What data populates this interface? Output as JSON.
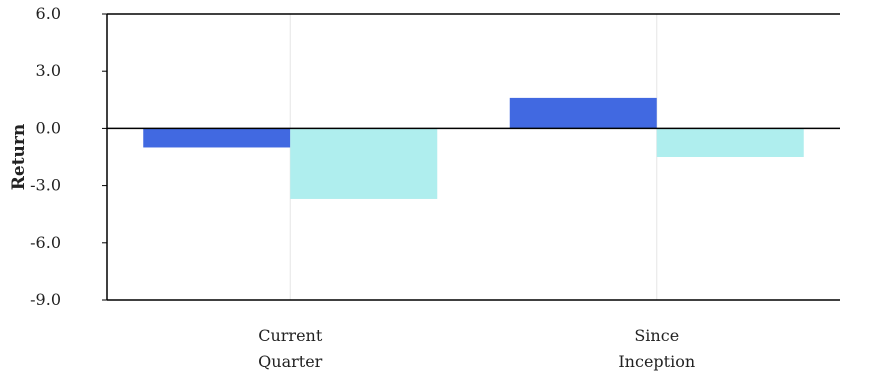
{
  "chart_data": {
    "type": "bar",
    "categories": [
      [
        "Current",
        "Quarter"
      ],
      [
        "Since",
        "Inception"
      ]
    ],
    "series": [
      {
        "color": "#4169E1",
        "values": [
          -1.0,
          1.6
        ]
      },
      {
        "color": "#AFEEEE",
        "values": [
          -3.7,
          -1.5
        ]
      }
    ],
    "xlabel": "",
    "ylabel": "Return",
    "ylim": [
      -9.0,
      6.0
    ],
    "yticks": [
      6.0,
      3.0,
      0.0,
      -3.0,
      -6.0,
      -9.0
    ],
    "ytick_labels": [
      "6.0",
      "3.0",
      "0.0",
      "-3.0",
      "-6.0",
      "-9.0"
    ],
    "grid": {
      "vertical": true,
      "horizontal": false
    },
    "legend": "none"
  }
}
